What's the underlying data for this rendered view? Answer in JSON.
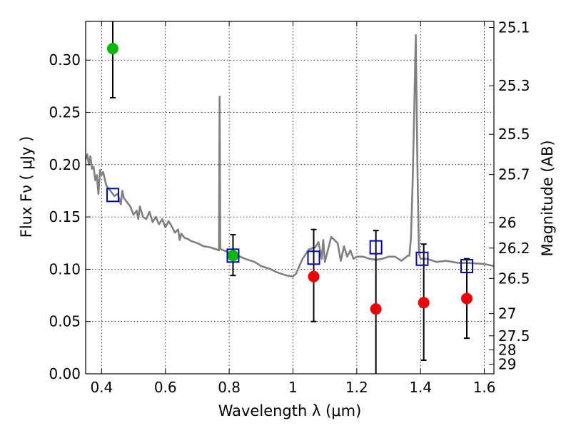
{
  "chart_data": {
    "type": "scatter",
    "xlabel": "Wavelength  λ (μm)",
    "ylabel": "Flux  Fν  ( μJy )",
    "ylabel_right": "Magnitude (AB)",
    "xlim": [
      0.35,
      1.63
    ],
    "ylim": [
      0.0,
      0.337
    ],
    "grid": true,
    "x_ticks": [
      {
        "value": 0.4,
        "label": "0.4"
      },
      {
        "value": 0.6,
        "label": "0.6"
      },
      {
        "value": 0.8,
        "label": "0.8"
      },
      {
        "value": 1.0,
        "label": "1"
      },
      {
        "value": 1.2,
        "label": "1.2"
      },
      {
        "value": 1.4,
        "label": "1.4"
      },
      {
        "value": 1.6,
        "label": "1.6"
      }
    ],
    "y_ticks": [
      {
        "value": 0.0,
        "label": "0.00"
      },
      {
        "value": 0.05,
        "label": "0.05"
      },
      {
        "value": 0.1,
        "label": "0.10"
      },
      {
        "value": 0.15,
        "label": "0.15"
      },
      {
        "value": 0.2,
        "label": "0.20"
      },
      {
        "value": 0.25,
        "label": "0.25"
      },
      {
        "value": 0.3,
        "label": "0.30"
      }
    ],
    "mag_ticks": [
      {
        "value": 25.1,
        "label": "25.1"
      },
      {
        "value": 25.3,
        "label": "25.3"
      },
      {
        "value": 25.5,
        "label": "25.5"
      },
      {
        "value": 25.7,
        "label": "25.7"
      },
      {
        "value": 26.0,
        "label": "26"
      },
      {
        "value": 26.2,
        "label": "26.2"
      },
      {
        "value": 26.5,
        "label": "26.5"
      },
      {
        "value": 27.0,
        "label": "27"
      },
      {
        "value": 27.5,
        "label": "27.5"
      },
      {
        "value": 28.0,
        "label": "28"
      },
      {
        "value": 29.0,
        "label": "29"
      }
    ],
    "colors": {
      "spectrum": "#808080",
      "detection": "#00bb00",
      "upper_limit": "#ee0000",
      "model": "#0000cc",
      "errorbar": "#000000"
    },
    "spectrum": {
      "x": [
        0.35,
        0.355,
        0.36,
        0.365,
        0.37,
        0.375,
        0.38,
        0.385,
        0.39,
        0.395,
        0.4,
        0.405,
        0.41,
        0.415,
        0.42,
        0.425,
        0.43,
        0.44,
        0.45,
        0.455,
        0.46,
        0.465,
        0.47,
        0.48,
        0.49,
        0.5,
        0.51,
        0.515,
        0.52,
        0.53,
        0.54,
        0.55,
        0.56,
        0.57,
        0.58,
        0.59,
        0.6,
        0.61,
        0.62,
        0.63,
        0.64,
        0.645,
        0.65,
        0.66,
        0.67,
        0.68,
        0.69,
        0.7,
        0.72,
        0.74,
        0.76,
        0.768,
        0.77,
        0.772,
        0.775,
        0.8,
        0.82,
        0.85,
        0.88,
        0.9,
        0.93,
        0.95,
        0.98,
        1.0,
        1.01,
        1.03,
        1.05,
        1.06,
        1.07,
        1.08,
        1.09,
        1.095,
        1.1,
        1.12,
        1.14,
        1.15,
        1.16,
        1.17,
        1.18,
        1.19,
        1.2,
        1.22,
        1.24,
        1.26,
        1.28,
        1.3,
        1.32,
        1.34,
        1.36,
        1.365,
        1.37,
        1.375,
        1.38,
        1.385,
        1.39,
        1.395,
        1.4,
        1.42,
        1.45,
        1.48,
        1.5,
        1.52,
        1.55,
        1.6,
        1.63
      ],
      "y": [
        0.205,
        0.21,
        0.2,
        0.208,
        0.196,
        0.198,
        0.185,
        0.19,
        0.172,
        0.195,
        0.19,
        0.193,
        0.186,
        0.18,
        0.178,
        0.176,
        0.174,
        0.17,
        0.172,
        0.168,
        0.162,
        0.175,
        0.168,
        0.164,
        0.16,
        0.152,
        0.156,
        0.148,
        0.16,
        0.15,
        0.148,
        0.155,
        0.145,
        0.15,
        0.143,
        0.148,
        0.14,
        0.146,
        0.141,
        0.135,
        0.138,
        0.128,
        0.134,
        0.13,
        0.129,
        0.127,
        0.126,
        0.125,
        0.122,
        0.121,
        0.119,
        0.118,
        0.265,
        0.12,
        0.119,
        0.116,
        0.114,
        0.11,
        0.107,
        0.103,
        0.1,
        0.097,
        0.094,
        0.093,
        0.096,
        0.11,
        0.119,
        0.12,
        0.121,
        0.126,
        0.11,
        0.128,
        0.107,
        0.131,
        0.125,
        0.108,
        0.122,
        0.112,
        0.118,
        0.11,
        0.112,
        0.112,
        0.11,
        0.109,
        0.11,
        0.112,
        0.112,
        0.108,
        0.113,
        0.113,
        0.13,
        0.18,
        0.25,
        0.324,
        0.2,
        0.115,
        0.11,
        0.11,
        0.107,
        0.108,
        0.107,
        0.106,
        0.106,
        0.105,
        0.103
      ]
    },
    "series": [
      {
        "marker": "circle-green",
        "points": [
          {
            "x": 0.435,
            "y": 0.311,
            "err_low": 0.264,
            "err_high": 0.337
          },
          {
            "x": 0.812,
            "y": 0.113,
            "err_low": 0.094,
            "err_high": 0.133
          }
        ]
      },
      {
        "marker": "circle-red",
        "points": [
          {
            "x": 1.065,
            "y": 0.093,
            "err_low": 0.05,
            "err_high": 0.138
          },
          {
            "x": 1.26,
            "y": 0.062,
            "err_low": 0.0,
            "err_high": 0.137
          },
          {
            "x": 1.41,
            "y": 0.068,
            "err_low": 0.013,
            "err_high": 0.124
          },
          {
            "x": 1.545,
            "y": 0.072,
            "err_low": 0.034,
            "err_high": 0.11
          }
        ]
      },
      {
        "marker": "square-blue-open",
        "points": [
          {
            "x": 0.435,
            "y": 0.171
          },
          {
            "x": 0.812,
            "y": 0.113
          },
          {
            "x": 1.065,
            "y": 0.111
          },
          {
            "x": 1.26,
            "y": 0.121
          },
          {
            "x": 1.405,
            "y": 0.11
          },
          {
            "x": 1.545,
            "y": 0.103
          }
        ]
      }
    ]
  }
}
